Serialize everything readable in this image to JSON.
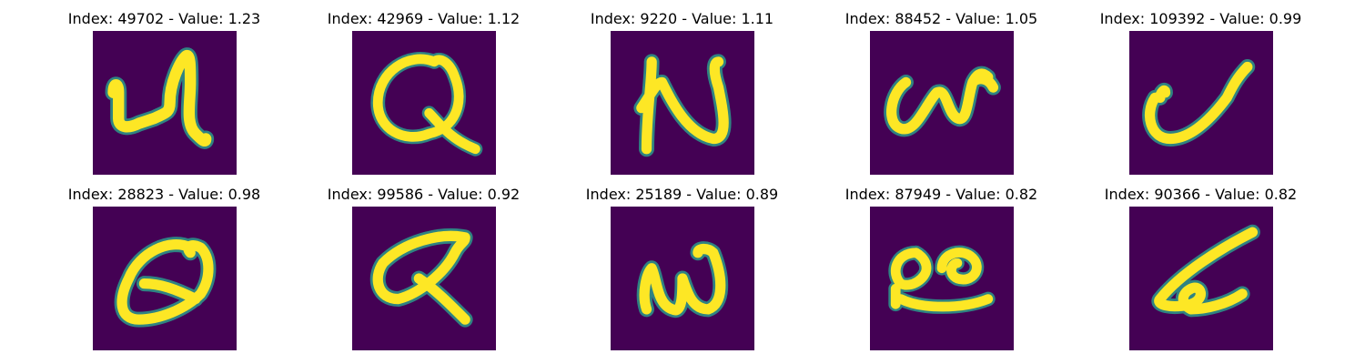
{
  "cells": [
    {
      "index": "49702",
      "value": "1.23",
      "title": "Index: 49702 - Value: 1.23",
      "glyph": "handwritten-character-u"
    },
    {
      "index": "42969",
      "value": "1.12",
      "title": "Index: 42969 - Value: 1.12",
      "glyph": "handwritten-character-q"
    },
    {
      "index": "9220",
      "value": "1.11",
      "title": "Index: 9220 - Value: 1.11",
      "glyph": "handwritten-character-n"
    },
    {
      "index": "88452",
      "value": "1.05",
      "title": "Index: 88452 - Value: 1.05",
      "glyph": "handwritten-character-n-curly"
    },
    {
      "index": "109392",
      "value": "0.99",
      "title": "Index: 109392 - Value: 0.99",
      "glyph": "handwritten-character-check"
    },
    {
      "index": "28823",
      "value": "0.98",
      "title": "Index: 28823 - Value: 0.98",
      "glyph": "handwritten-character-q-slanted"
    },
    {
      "index": "99586",
      "value": "0.92",
      "title": "Index: 99586 - Value: 0.92",
      "glyph": "handwritten-character-q-loop"
    },
    {
      "index": "25189",
      "value": "0.89",
      "title": "Index: 25189 - Value: 0.89",
      "glyph": "handwritten-character-w"
    },
    {
      "index": "87949",
      "value": "0.82",
      "title": "Index: 87949 - Value: 0.82",
      "glyph": "handwritten-character-oo"
    },
    {
      "index": "90366",
      "value": "0.82",
      "title": "Index: 90366 - Value: 0.82",
      "glyph": "handwritten-character-a"
    }
  ],
  "colors": {
    "background": "#440154",
    "stroke_core": "#fde725",
    "stroke_mid": "#7ad151",
    "stroke_edge": "#2c9a8b"
  }
}
